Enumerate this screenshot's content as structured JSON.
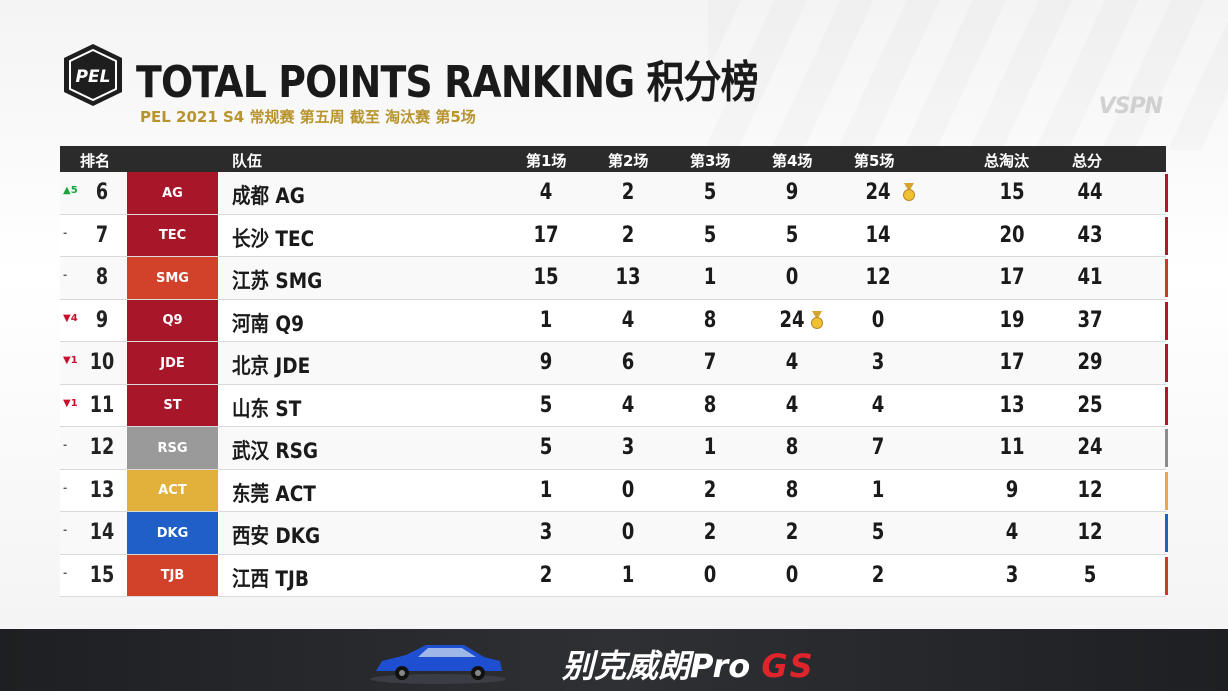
{
  "header": {
    "logo_text": "PEL",
    "title": "TOTAL POINTS RANKING 积分榜",
    "subtitle": "PEL 2021 S4 常规赛 第五周 截至 淘汰赛 第5场",
    "watermark": "VSPN"
  },
  "columns": {
    "rank": "排名",
    "team": "队伍",
    "m1": "第1场",
    "m2": "第2场",
    "m3": "第3场",
    "m4": "第4场",
    "m5": "第5场",
    "kills": "总淘汰",
    "total": "总分"
  },
  "rows": [
    {
      "change": "▲5",
      "change_color": "#1aa53a",
      "rank": "6",
      "logo": "AG",
      "logo_color": "#a8162a",
      "team": "成都 AG",
      "m1": "4",
      "m2": "2",
      "m3": "5",
      "m4": "9",
      "m5": "24",
      "medal": "m5",
      "kills": "15",
      "total": "44",
      "accent": "#b3152b"
    },
    {
      "change": "-",
      "change_color": "#555555",
      "rank": "7",
      "logo": "TEC",
      "logo_color": "#a8162a",
      "team": "长沙 TEC",
      "m1": "17",
      "m2": "2",
      "m3": "5",
      "m4": "5",
      "m5": "14",
      "medal": "",
      "kills": "20",
      "total": "43",
      "accent": "#b3152b"
    },
    {
      "change": "-",
      "change_color": "#555555",
      "rank": "8",
      "logo": "SMG",
      "logo_color": "#d2412a",
      "team": "江苏 SMG",
      "m1": "15",
      "m2": "13",
      "m3": "1",
      "m4": "0",
      "m5": "12",
      "medal": "",
      "kills": "17",
      "total": "41",
      "accent": "#c93a2a"
    },
    {
      "change": "▼4",
      "change_color": "#c8102e",
      "rank": "9",
      "logo": "Q9",
      "logo_color": "#a8162a",
      "team": "河南 Q9",
      "m1": "1",
      "m2": "4",
      "m3": "8",
      "m4": "24",
      "m5": "0",
      "medal": "m4",
      "kills": "19",
      "total": "37",
      "accent": "#b3152b"
    },
    {
      "change": "▼1",
      "change_color": "#c8102e",
      "rank": "10",
      "logo": "JDE",
      "logo_color": "#a8162a",
      "team": "北京 JDE",
      "m1": "9",
      "m2": "6",
      "m3": "7",
      "m4": "4",
      "m5": "3",
      "medal": "",
      "kills": "17",
      "total": "29",
      "accent": "#b3152b"
    },
    {
      "change": "▼1",
      "change_color": "#c8102e",
      "rank": "11",
      "logo": "ST",
      "logo_color": "#a8162a",
      "team": "山东 ST",
      "m1": "5",
      "m2": "4",
      "m3": "8",
      "m4": "4",
      "m5": "4",
      "medal": "",
      "kills": "13",
      "total": "25",
      "accent": "#b3152b"
    },
    {
      "change": "-",
      "change_color": "#555555",
      "rank": "12",
      "logo": "RSG",
      "logo_color": "#9a9a9a",
      "team": "武汉 RSG",
      "m1": "5",
      "m2": "3",
      "m3": "1",
      "m4": "8",
      "m5": "7",
      "medal": "",
      "kills": "11",
      "total": "24",
      "accent": "#8c8c8c"
    },
    {
      "change": "-",
      "change_color": "#555555",
      "rank": "13",
      "logo": "ACT",
      "logo_color": "#e2b13c",
      "team": "东莞 ACT",
      "m1": "1",
      "m2": "0",
      "m3": "2",
      "m4": "8",
      "m5": "1",
      "medal": "",
      "kills": "9",
      "total": "12",
      "accent": "#e3ad3a"
    },
    {
      "change": "-",
      "change_color": "#555555",
      "rank": "14",
      "logo": "DKG",
      "logo_color": "#1f5fc7",
      "team": "西安 DKG",
      "m1": "3",
      "m2": "0",
      "m3": "2",
      "m4": "2",
      "m5": "5",
      "medal": "",
      "kills": "4",
      "total": "12",
      "accent": "#1f5fc7"
    },
    {
      "change": "-",
      "change_color": "#555555",
      "rank": "15",
      "logo": "TJB",
      "logo_color": "#d2412a",
      "team": "江西 TJB",
      "m1": "2",
      "m2": "1",
      "m3": "0",
      "m4": "0",
      "m5": "2",
      "medal": "",
      "kills": "3",
      "total": "5",
      "accent": "#c93a2a"
    }
  ],
  "sponsor": {
    "text": "别克威朗Pro",
    "suffix": "GS"
  }
}
